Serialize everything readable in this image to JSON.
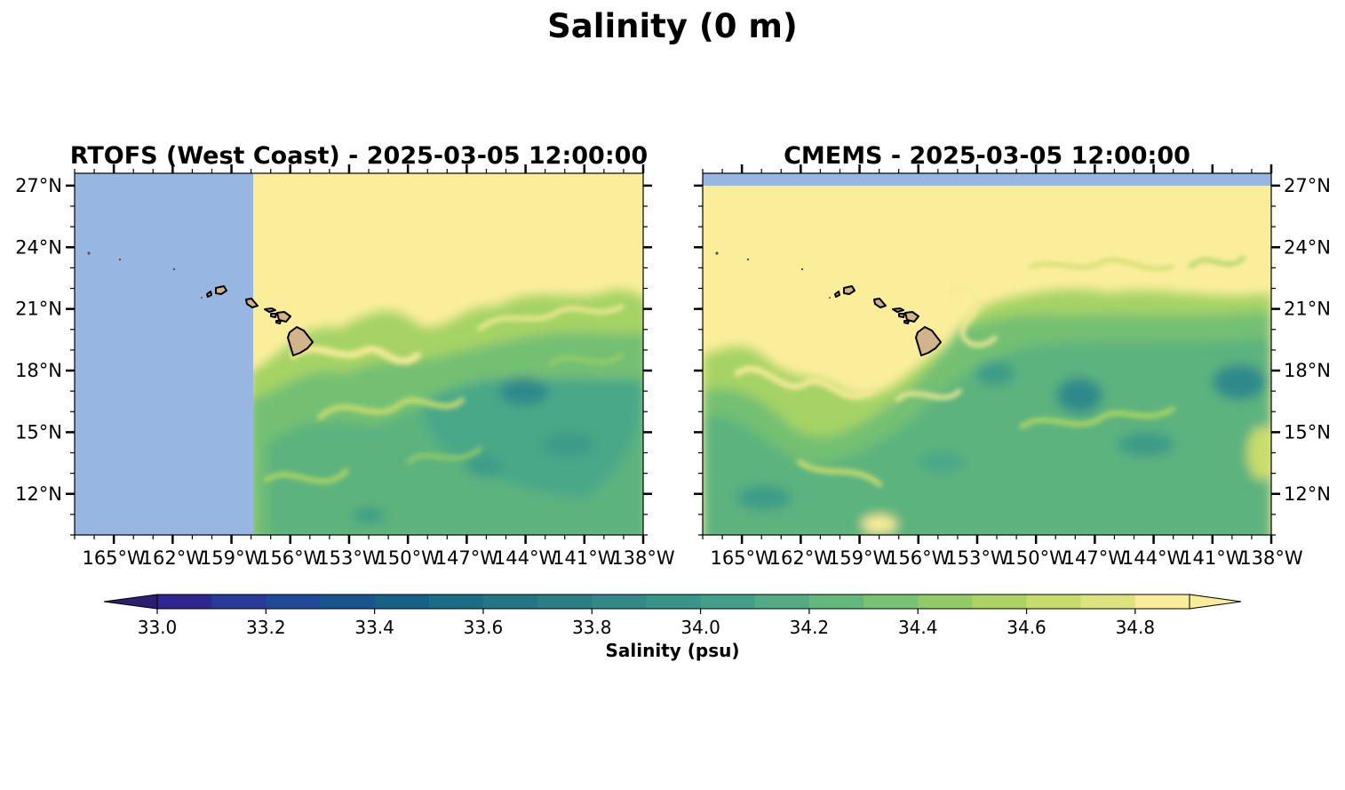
{
  "figure": {
    "title": "Salinity (0 m)"
  },
  "panels": [
    {
      "title": "RTOFS (West Coast) - 2025-03-05 12:00:00",
      "lat_labels_side": "left",
      "no_data_region": "west of ~157.5°W",
      "no_data_color": "#98b6e2"
    },
    {
      "title": "CMEMS - 2025-03-05 12:00:00",
      "lat_labels_side": "right",
      "no_data_region": "north of ~27°N",
      "no_data_color": "#98b6e2"
    }
  ],
  "axes": {
    "lon_ticks": [
      "165°W",
      "162°W",
      "159°W",
      "156°W",
      "153°W",
      "150°W",
      "147°W",
      "144°W",
      "141°W",
      "138°W"
    ],
    "lon_values": [
      -165,
      -162,
      -159,
      -156,
      -153,
      -150,
      -147,
      -144,
      -141,
      -138
    ],
    "lat_ticks": [
      "27°N",
      "24°N",
      "21°N",
      "18°N",
      "15°N",
      "12°N"
    ],
    "lat_values": [
      27,
      24,
      21,
      18,
      15,
      12
    ],
    "lon_range": [
      -167,
      -138
    ],
    "lat_range": [
      10,
      27.6
    ]
  },
  "land_color": "#d2b48c",
  "colorbar": {
    "label": "Salinity (psu)",
    "orientation": "horizontal",
    "levels": [
      33.0,
      33.1,
      33.2,
      33.3,
      33.4,
      33.5,
      33.6,
      33.7,
      33.8,
      33.9,
      34.0,
      34.1,
      34.2,
      34.3,
      34.4,
      34.5,
      34.6,
      34.7,
      34.8,
      34.9
    ],
    "tick_labels": [
      "33.0",
      "33.2",
      "33.4",
      "33.6",
      "33.8",
      "34.0",
      "34.2",
      "34.4",
      "34.6",
      "34.8"
    ],
    "extend": "both",
    "colors": [
      "#2c1e6e",
      "#2e2691",
      "#283a9c",
      "#1f4a9a",
      "#18558f",
      "#166287",
      "#1a6d86",
      "#237686",
      "#2a7e86",
      "#318a87",
      "#38958a",
      "#41a087",
      "#52ab82",
      "#64b87b",
      "#77c372",
      "#90cb66",
      "#acd462",
      "#c7dc6b",
      "#dde47d",
      "#f9ed9a"
    ]
  }
}
